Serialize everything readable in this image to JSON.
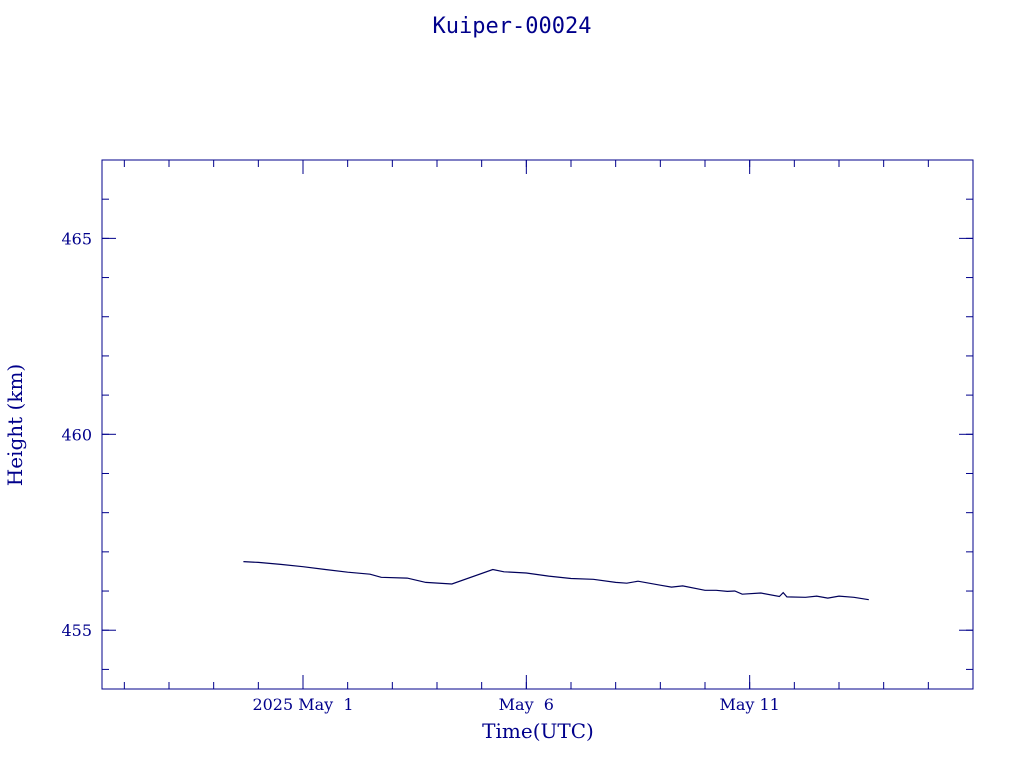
{
  "chart_data": {
    "type": "line",
    "title": "Kuiper-00024",
    "xlabel": "Time(UTC)",
    "ylabel": "Height (km)",
    "xlim": [
      "2025-04-26T12:00",
      "2025-05-16T00:00"
    ],
    "ylim": [
      453.5,
      467
    ],
    "x_ticks": [
      {
        "label": "2025 May  1",
        "value": "2025-05-01"
      },
      {
        "label": "May  6",
        "value": "2025-05-06"
      },
      {
        "label": "May 11",
        "value": "2025-05-11"
      }
    ],
    "y_ticks": [
      455,
      460,
      465
    ],
    "grid": false,
    "colors": {
      "line": "#00005a",
      "axes": "#00008b",
      "text": "#00008b"
    },
    "series": [
      {
        "x": [
          "2025-04-29T16:00",
          "2025-04-30T00:00",
          "2025-04-30T12:00",
          "2025-05-01T00:00",
          "2025-05-01T12:00",
          "2025-05-02T00:00",
          "2025-05-02T12:00",
          "2025-05-02T18:00",
          "2025-05-03T08:00",
          "2025-05-03T18:00",
          "2025-05-04T08:00",
          "2025-05-05T06:00",
          "2025-05-05T12:00",
          "2025-05-06T00:00",
          "2025-05-06T12:00",
          "2025-05-07T00:00",
          "2025-05-07T12:00",
          "2025-05-08T00:00",
          "2025-05-08T06:00",
          "2025-05-08T12:00",
          "2025-05-09T00:00",
          "2025-05-09T06:00",
          "2025-05-09T12:00",
          "2025-05-10T00:00",
          "2025-05-10T06:00",
          "2025-05-10T12:00",
          "2025-05-10T16:00",
          "2025-05-10T20:00",
          "2025-05-11T06:00",
          "2025-05-11T16:00",
          "2025-05-11T18:00",
          "2025-05-11T20:00",
          "2025-05-12T06:00",
          "2025-05-12T12:00",
          "2025-05-12T18:00",
          "2025-05-13T00:00",
          "2025-05-13T08:00",
          "2025-05-13T16:00"
        ],
        "values": [
          456.75,
          456.73,
          456.68,
          456.62,
          456.55,
          456.48,
          456.43,
          456.35,
          456.33,
          456.22,
          456.18,
          456.55,
          456.49,
          456.46,
          456.38,
          456.32,
          456.3,
          456.22,
          456.2,
          456.25,
          456.15,
          456.1,
          456.13,
          456.02,
          456.02,
          455.99,
          456.0,
          455.92,
          455.95,
          455.86,
          455.96,
          455.85,
          455.84,
          455.87,
          455.82,
          455.87,
          455.84,
          455.78
        ]
      }
    ]
  }
}
